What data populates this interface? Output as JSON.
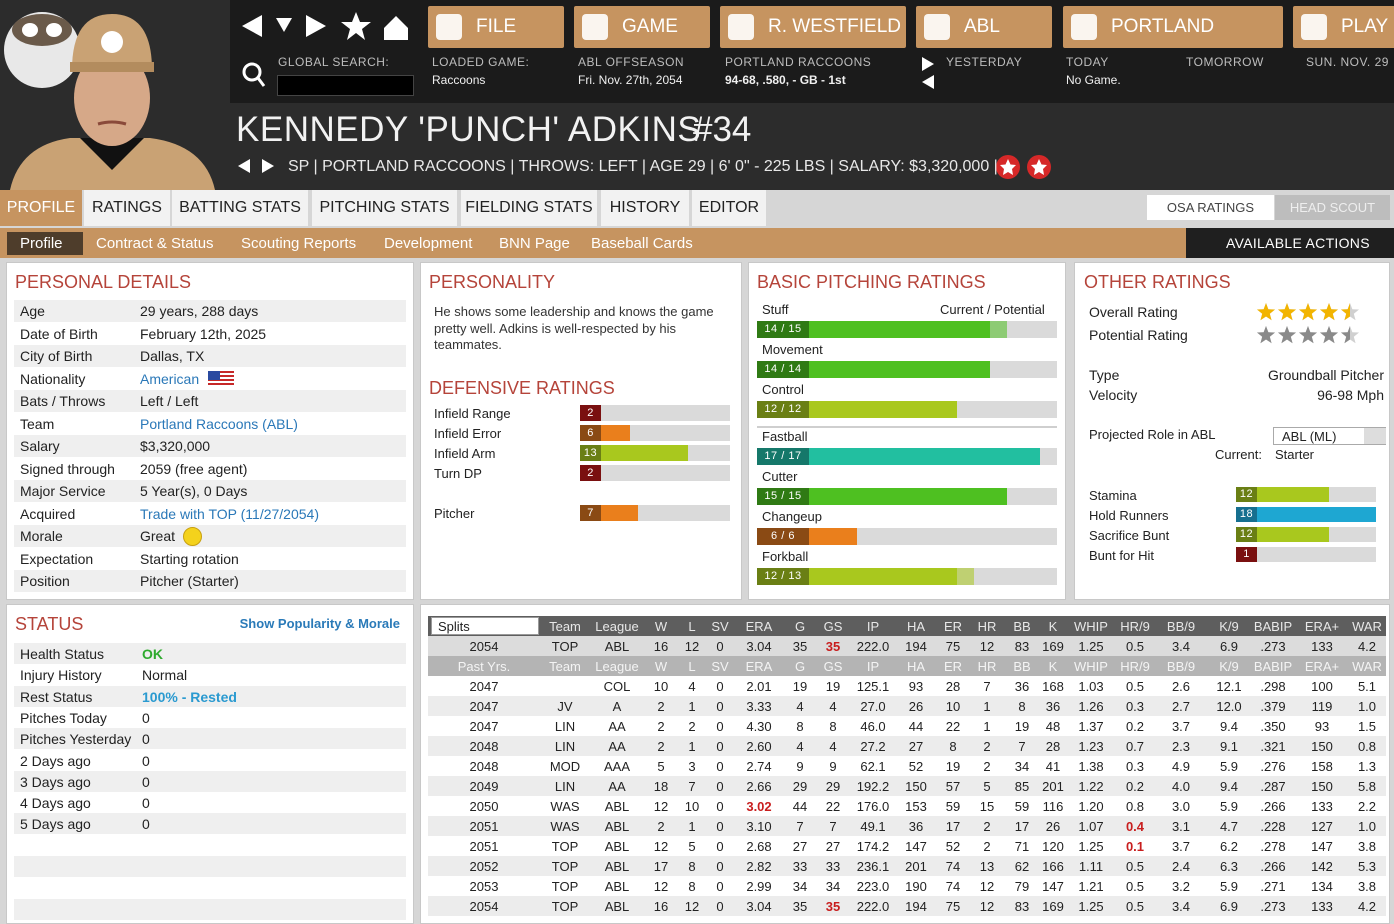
{
  "nav": {
    "buttons": [
      "FILE",
      "GAME",
      "R. WESTFIELD",
      "ABL",
      "PORTLAND",
      "PLAY"
    ],
    "global_search": "GLOBAL SEARCH:",
    "info": [
      {
        "label": "LOADED GAME:",
        "value": "Raccoons"
      },
      {
        "label": "ABL OFFSEASON",
        "value": "Fri. Nov. 27th, 2054"
      },
      {
        "label": "PORTLAND RACCOONS",
        "value": "94-68, .580, - GB - 1st"
      },
      {
        "label": "YESTERDAY"
      },
      {
        "label": "TODAY",
        "value": "No Game."
      },
      {
        "label": "TOMORROW"
      },
      {
        "label": "SUN. NOV. 29"
      }
    ]
  },
  "player": {
    "name": "KENNEDY 'PUNCH' ADKINS",
    "number": "#34",
    "info": "SP | PORTLAND RACCOONS | THROWS: LEFT | AGE 29 | 6' 0\" - 225 LBS | SALARY: $3,320,000 |"
  },
  "tabs": [
    "PROFILE",
    "RATINGS",
    "BATTING STATS",
    "PITCHING STATS",
    "FIELDING STATS",
    "HISTORY",
    "EDITOR"
  ],
  "subtabs": [
    "Profile",
    "Contract & Status",
    "Scouting Reports",
    "Development",
    "BNN Page",
    "Baseball Cards"
  ],
  "ratings_source": [
    "OSA RATINGS",
    "HEAD SCOUT"
  ],
  "actions": "AVAILABLE ACTIONS",
  "rating_range": [
    0,
    18
  ],
  "personal_details": {
    "title": "PERSONAL DETAILS",
    "link_color": "#2a78b8",
    "rows": [
      {
        "label": "Age",
        "value": "29 years, 288 days"
      },
      {
        "label": "Date of Birth",
        "value": "February 12th, 2025"
      },
      {
        "label": "City of Birth",
        "value": "Dallas, TX"
      },
      {
        "label": "Nationality",
        "value": "American",
        "link": true
      },
      {
        "label": "Bats / Throws",
        "value": "Left / Left"
      },
      {
        "label": "Team",
        "value": "Portland Raccoons (ABL)",
        "link": true
      },
      {
        "label": "Salary",
        "value": "$3,320,000"
      },
      {
        "label": "Signed through",
        "value": "2059 (free agent)"
      },
      {
        "label": "Major Service",
        "value": "5 Year(s), 0 Days"
      },
      {
        "label": "Acquired",
        "value": "Trade with TOP (11/27/2054)",
        "link": true
      },
      {
        "label": "Morale",
        "value": "Great"
      },
      {
        "label": "Expectation",
        "value": "Starting rotation"
      },
      {
        "label": "Position",
        "value": "Pitcher (Starter)"
      }
    ]
  },
  "personality": {
    "title": "PERSONALITY",
    "text": "He shows some leadership and knows the game pretty well. Adkins is well-respected by his teammates."
  },
  "defensive": {
    "title": "DEFENSIVE RATINGS",
    "rows": [
      {
        "label": "Infield Range",
        "value": 2
      },
      {
        "label": "Infield Error",
        "value": 6
      },
      {
        "label": "Infield Arm",
        "value": 13
      },
      {
        "label": "Turn DP",
        "value": 2
      },
      {
        "label": "Pitcher",
        "value": 7
      }
    ]
  },
  "pitching": {
    "title": "BASIC PITCHING RATINGS",
    "legend": "Current / Potential",
    "rows": [
      {
        "name": "Stuff",
        "label": "14 / 15",
        "current": 14,
        "potential": 15
      },
      {
        "name": "Movement",
        "label": "14 / 14",
        "current": 14,
        "potential": 14
      },
      {
        "name": "Control",
        "label": "12 / 12",
        "current": 12,
        "potential": 12
      },
      {
        "name": "Fastball",
        "label": "17 / 17",
        "current": 17,
        "potential": 17
      },
      {
        "name": "Cutter",
        "label": "15 / 15",
        "current": 15,
        "potential": 15
      },
      {
        "name": "Changeup",
        "label": "6 / 6",
        "current": 6,
        "potential": 6
      },
      {
        "name": "Forkball",
        "label": "12 / 13",
        "current": 12,
        "potential": 13
      }
    ]
  },
  "other": {
    "title": "OTHER RATINGS",
    "stars": [
      {
        "label": "Overall Rating",
        "value": 4.5,
        "color": "#f2b400"
      },
      {
        "label": "Potential Rating",
        "value": 4.5,
        "color": "#8a8a8a"
      }
    ],
    "details": [
      {
        "label": "Type",
        "value": "Groundball Pitcher"
      },
      {
        "label": "Velocity",
        "value": "96-98 Mph"
      }
    ],
    "role": {
      "label": "Projected Role in ABL",
      "select": "ABL (ML)",
      "current_label": "Current:",
      "current": "Starter"
    },
    "bars": [
      {
        "label": "Stamina",
        "value": 12
      },
      {
        "label": "Hold Runners",
        "value": 18
      },
      {
        "label": "Sacrifice Bunt",
        "value": 12
      },
      {
        "label": "Bunt for Hit",
        "value": 1
      }
    ]
  },
  "status": {
    "title": "STATUS",
    "link": "Show Popularity & Morale",
    "rows": [
      {
        "label": "Health Status",
        "value": "OK",
        "color": "#2eaa2e"
      },
      {
        "label": "Injury History",
        "value": "Normal"
      },
      {
        "label": "Rest Status",
        "value": "100% - Rested",
        "color": "#2a9ad0"
      },
      {
        "label": "Pitches Today",
        "value": "0"
      },
      {
        "label": "Pitches Yesterday",
        "value": "0"
      },
      {
        "label": "2 Days ago",
        "value": "0"
      },
      {
        "label": "3 Days ago",
        "value": "0"
      },
      {
        "label": "4 Days ago",
        "value": "0"
      },
      {
        "label": "5 Days ago",
        "value": "0"
      }
    ]
  },
  "stats": {
    "splits": "Splits",
    "past": "Past Yrs.",
    "highlight_color": "#c81e1e",
    "columns": [
      "Team",
      "League",
      "W",
      "L",
      "SV",
      "ERA",
      "G",
      "GS",
      "IP",
      "HA",
      "ER",
      "HR",
      "BB",
      "K",
      "WHIP",
      "HR/9",
      "BB/9",
      "K/9",
      "BABIP",
      "ERA+",
      "WAR"
    ],
    "current": {
      "cells": [
        "2054",
        "TOP",
        "ABL",
        "16",
        "12",
        "0",
        "3.04",
        "35",
        "35",
        "222.0",
        "194",
        "75",
        "12",
        "83",
        "169",
        "1.25",
        "0.5",
        "3.4",
        "6.9",
        ".273",
        "133",
        "4.2"
      ],
      "red": [
        8
      ]
    },
    "rows": [
      {
        "cells": [
          "2047",
          null,
          "COL",
          "10",
          "4",
          "0",
          "2.01",
          "19",
          "19",
          "125.1",
          "93",
          "28",
          "7",
          "36",
          "168",
          "1.03",
          "0.5",
          "2.6",
          "12.1",
          ".298",
          "100",
          "5.1"
        ]
      },
      {
        "cells": [
          "2047",
          "JV",
          "A",
          "2",
          "1",
          "0",
          "3.33",
          "4",
          "4",
          "27.0",
          "26",
          "10",
          "1",
          "8",
          "36",
          "1.26",
          "0.3",
          "2.7",
          "12.0",
          ".379",
          "119",
          "1.0"
        ]
      },
      {
        "cells": [
          "2047",
          "LIN",
          "AA",
          "2",
          "2",
          "0",
          "4.30",
          "8",
          "8",
          "46.0",
          "44",
          "22",
          "1",
          "19",
          "48",
          "1.37",
          "0.2",
          "3.7",
          "9.4",
          ".350",
          "93",
          "1.5"
        ]
      },
      {
        "cells": [
          "2048",
          "LIN",
          "AA",
          "2",
          "1",
          "0",
          "2.60",
          "4",
          "4",
          "27.2",
          "27",
          "8",
          "2",
          "7",
          "28",
          "1.23",
          "0.7",
          "2.3",
          "9.1",
          ".321",
          "150",
          "0.8"
        ]
      },
      {
        "cells": [
          "2048",
          "MOD",
          "AAA",
          "5",
          "3",
          "0",
          "2.74",
          "9",
          "9",
          "62.1",
          "52",
          "19",
          "2",
          "34",
          "41",
          "1.38",
          "0.3",
          "4.9",
          "5.9",
          ".276",
          "158",
          "1.3"
        ]
      },
      {
        "cells": [
          "2049",
          "LIN",
          "AA",
          "18",
          "7",
          "0",
          "2.66",
          "29",
          "29",
          "192.2",
          "150",
          "57",
          "5",
          "85",
          "201",
          "1.22",
          "0.2",
          "4.0",
          "9.4",
          ".287",
          "150",
          "5.8"
        ]
      },
      {
        "cells": [
          "2050",
          "WAS",
          "ABL",
          "12",
          "10",
          "0",
          "3.02",
          "44",
          "22",
          "176.0",
          "153",
          "59",
          "15",
          "59",
          "116",
          "1.20",
          "0.8",
          "3.0",
          "5.9",
          ".266",
          "133",
          "2.2"
        ],
        "red": [
          6
        ]
      },
      {
        "cells": [
          "2051",
          "WAS",
          "ABL",
          "2",
          "1",
          "0",
          "3.10",
          "7",
          "7",
          "49.1",
          "36",
          "17",
          "2",
          "17",
          "26",
          "1.07",
          "0.4",
          "3.1",
          "4.7",
          ".228",
          "127",
          "1.0"
        ],
        "red": [
          16
        ]
      },
      {
        "cells": [
          "2051",
          "TOP",
          "ABL",
          "12",
          "5",
          "0",
          "2.68",
          "27",
          "27",
          "174.2",
          "147",
          "52",
          "2",
          "71",
          "120",
          "1.25",
          "0.1",
          "3.7",
          "6.2",
          ".278",
          "147",
          "3.8"
        ],
        "red": [
          16
        ]
      },
      {
        "cells": [
          "2052",
          "TOP",
          "ABL",
          "17",
          "8",
          "0",
          "2.82",
          "33",
          "33",
          "236.1",
          "201",
          "74",
          "13",
          "62",
          "166",
          "1.11",
          "0.5",
          "2.4",
          "6.3",
          ".266",
          "142",
          "5.3"
        ]
      },
      {
        "cells": [
          "2053",
          "TOP",
          "ABL",
          "12",
          "8",
          "0",
          "2.99",
          "34",
          "34",
          "223.0",
          "190",
          "74",
          "12",
          "79",
          "147",
          "1.21",
          "0.5",
          "3.2",
          "5.9",
          ".271",
          "134",
          "3.8"
        ]
      },
      {
        "cells": [
          "2054",
          "TOP",
          "ABL",
          "16",
          "12",
          "0",
          "3.04",
          "35",
          "35",
          "222.0",
          "194",
          "75",
          "12",
          "83",
          "169",
          "1.25",
          "0.5",
          "3.4",
          "6.9",
          ".273",
          "133",
          "4.2"
        ],
        "red": [
          8
        ]
      }
    ]
  }
}
